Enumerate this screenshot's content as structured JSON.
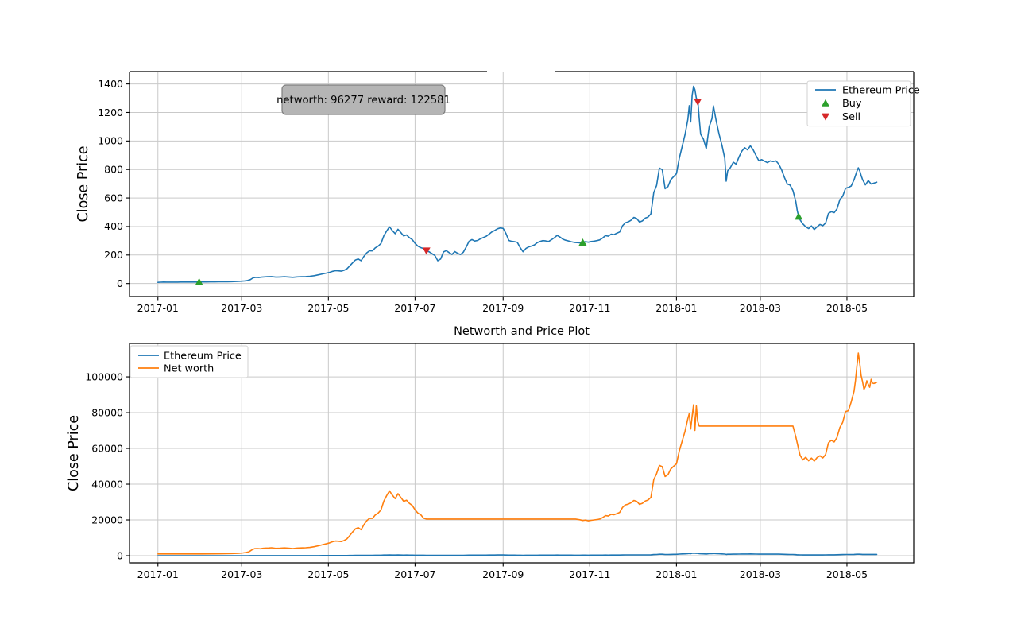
{
  "figure": {
    "background": "#ffffff"
  },
  "annotation": {
    "text": "networth: 96277 reward: 122581",
    "networth": 96277,
    "reward": 122581
  },
  "colors": {
    "price": "#1f77b4",
    "networth": "#ff7f0e",
    "buy": "#2ca02c",
    "sell": "#d62728",
    "grid": "#c9c9c9",
    "spine": "#000000",
    "annotation_bg": "#b5b5b5",
    "annotation_border": "#7f7f7f",
    "legend_border": "#d2d2d2",
    "legend_bg": "#ffffff"
  },
  "eth_price_points": [
    [
      0,
      8
    ],
    [
      2,
      9.6
    ],
    [
      4,
      10.3
    ],
    [
      6,
      10.2
    ],
    [
      8,
      10.1
    ],
    [
      10,
      9.9
    ],
    [
      12,
      10.0
    ],
    [
      14,
      10.1
    ],
    [
      16,
      10.3
    ],
    [
      18,
      10.4
    ],
    [
      20,
      10.7
    ],
    [
      22,
      10.8
    ],
    [
      24,
      10.6
    ],
    [
      26,
      10.5
    ],
    [
      28,
      10.6
    ],
    [
      31,
      10.9
    ],
    [
      34,
      11.2
    ],
    [
      37,
      11.4
    ],
    [
      40,
      11.7
    ],
    [
      43,
      11.9
    ],
    [
      46,
      12.4
    ],
    [
      49,
      12.8
    ],
    [
      52,
      13.2
    ],
    [
      55,
      14.2
    ],
    [
      58,
      15.9
    ],
    [
      61,
      18.5
    ],
    [
      63,
      21
    ],
    [
      65,
      27
    ],
    [
      67,
      40
    ],
    [
      69,
      44
    ],
    [
      71,
      42
    ],
    [
      73,
      45
    ],
    [
      75,
      47
    ],
    [
      77,
      48
    ],
    [
      80,
      49
    ],
    [
      83,
      45
    ],
    [
      86,
      46
    ],
    [
      89,
      48
    ],
    [
      92,
      46
    ],
    [
      95,
      44
    ],
    [
      98,
      47
    ],
    [
      101,
      48
    ],
    [
      104,
      49
    ],
    [
      107,
      51
    ],
    [
      110,
      55
    ],
    [
      113,
      61
    ],
    [
      116,
      68
    ],
    [
      119,
      74
    ],
    [
      121,
      79
    ],
    [
      123,
      86
    ],
    [
      125,
      90
    ],
    [
      127,
      89
    ],
    [
      129,
      87
    ],
    [
      131,
      93
    ],
    [
      133,
      103
    ],
    [
      135,
      123
    ],
    [
      137,
      145
    ],
    [
      139,
      165
    ],
    [
      141,
      172
    ],
    [
      143,
      160
    ],
    [
      145,
      190
    ],
    [
      147,
      215
    ],
    [
      149,
      230
    ],
    [
      151,
      229
    ],
    [
      153,
      250
    ],
    [
      155,
      262
    ],
    [
      157,
      281
    ],
    [
      159,
      335
    ],
    [
      161,
      368
    ],
    [
      163,
      398
    ],
    [
      165,
      372
    ],
    [
      167,
      350
    ],
    [
      169,
      381
    ],
    [
      171,
      358
    ],
    [
      173,
      334
    ],
    [
      175,
      341
    ],
    [
      177,
      322
    ],
    [
      179,
      309
    ],
    [
      181,
      282
    ],
    [
      183,
      262
    ],
    [
      185,
      252
    ],
    [
      187,
      246
    ],
    [
      189,
      232
    ],
    [
      191,
      222
    ],
    [
      193,
      209
    ],
    [
      195,
      196
    ],
    [
      197,
      160
    ],
    [
      199,
      172
    ],
    [
      201,
      222
    ],
    [
      203,
      231
    ],
    [
      205,
      217
    ],
    [
      207,
      204
    ],
    [
      209,
      224
    ],
    [
      211,
      212
    ],
    [
      213,
      204
    ],
    [
      215,
      220
    ],
    [
      217,
      256
    ],
    [
      219,
      296
    ],
    [
      221,
      308
    ],
    [
      223,
      298
    ],
    [
      225,
      302
    ],
    [
      227,
      314
    ],
    [
      229,
      322
    ],
    [
      231,
      331
    ],
    [
      233,
      346
    ],
    [
      235,
      362
    ],
    [
      237,
      372
    ],
    [
      239,
      384
    ],
    [
      241,
      390
    ],
    [
      243,
      387
    ],
    [
      245,
      351
    ],
    [
      247,
      302
    ],
    [
      249,
      296
    ],
    [
      251,
      294
    ],
    [
      253,
      289
    ],
    [
      255,
      252
    ],
    [
      257,
      223
    ],
    [
      259,
      246
    ],
    [
      261,
      257
    ],
    [
      263,
      263
    ],
    [
      265,
      271
    ],
    [
      267,
      287
    ],
    [
      269,
      295
    ],
    [
      271,
      301
    ],
    [
      273,
      299
    ],
    [
      275,
      295
    ],
    [
      277,
      307
    ],
    [
      279,
      321
    ],
    [
      281,
      338
    ],
    [
      283,
      326
    ],
    [
      285,
      311
    ],
    [
      287,
      304
    ],
    [
      289,
      299
    ],
    [
      291,
      293
    ],
    [
      293,
      289
    ],
    [
      295,
      287
    ],
    [
      297,
      286
    ],
    [
      299,
      291
    ],
    [
      301,
      293
    ],
    [
      303,
      290
    ],
    [
      305,
      295
    ],
    [
      307,
      297
    ],
    [
      309,
      301
    ],
    [
      311,
      306
    ],
    [
      313,
      319
    ],
    [
      315,
      336
    ],
    [
      317,
      332
    ],
    [
      319,
      346
    ],
    [
      321,
      343
    ],
    [
      323,
      353
    ],
    [
      325,
      362
    ],
    [
      327,
      405
    ],
    [
      329,
      426
    ],
    [
      331,
      432
    ],
    [
      333,
      444
    ],
    [
      335,
      464
    ],
    [
      337,
      456
    ],
    [
      339,
      431
    ],
    [
      341,
      439
    ],
    [
      343,
      459
    ],
    [
      345,
      466
    ],
    [
      347,
      489
    ],
    [
      349,
      638
    ],
    [
      351,
      688
    ],
    [
      353,
      810
    ],
    [
      355,
      799
    ],
    [
      357,
      665
    ],
    [
      359,
      680
    ],
    [
      361,
      728
    ],
    [
      363,
      750
    ],
    [
      365,
      771
    ],
    [
      367,
      880
    ],
    [
      369,
      960
    ],
    [
      371,
      1043
    ],
    [
      373,
      1150
    ],
    [
      374,
      1248
    ],
    [
      375,
      1133
    ],
    [
      376,
      1318
    ],
    [
      377,
      1384
    ],
    [
      378,
      1360
    ],
    [
      379,
      1300
    ],
    [
      380,
      1286
    ],
    [
      381,
      1160
    ],
    [
      382,
      1048
    ],
    [
      384,
      1012
    ],
    [
      386,
      946
    ],
    [
      388,
      1098
    ],
    [
      390,
      1158
    ],
    [
      391,
      1246
    ],
    [
      393,
      1138
    ],
    [
      395,
      1048
    ],
    [
      397,
      972
    ],
    [
      399,
      878
    ],
    [
      400,
      718
    ],
    [
      401,
      790
    ],
    [
      403,
      814
    ],
    [
      405,
      851
    ],
    [
      407,
      838
    ],
    [
      409,
      888
    ],
    [
      411,
      928
    ],
    [
      413,
      953
    ],
    [
      415,
      938
    ],
    [
      417,
      966
    ],
    [
      419,
      937
    ],
    [
      421,
      898
    ],
    [
      423,
      861
    ],
    [
      425,
      869
    ],
    [
      427,
      858
    ],
    [
      429,
      848
    ],
    [
      431,
      860
    ],
    [
      433,
      856
    ],
    [
      435,
      860
    ],
    [
      437,
      838
    ],
    [
      439,
      798
    ],
    [
      441,
      744
    ],
    [
      443,
      698
    ],
    [
      445,
      690
    ],
    [
      447,
      652
    ],
    [
      449,
      575
    ],
    [
      450,
      512
    ],
    [
      451,
      470
    ],
    [
      452,
      446
    ],
    [
      453,
      432
    ],
    [
      454,
      418
    ],
    [
      456,
      398
    ],
    [
      458,
      386
    ],
    [
      460,
      404
    ],
    [
      462,
      379
    ],
    [
      464,
      398
    ],
    [
      466,
      414
    ],
    [
      468,
      406
    ],
    [
      470,
      424
    ],
    [
      472,
      492
    ],
    [
      474,
      504
    ],
    [
      476,
      497
    ],
    [
      478,
      523
    ],
    [
      480,
      588
    ],
    [
      482,
      612
    ],
    [
      484,
      668
    ],
    [
      486,
      674
    ],
    [
      488,
      684
    ],
    [
      490,
      728
    ],
    [
      492,
      788
    ],
    [
      493,
      812
    ],
    [
      494,
      790
    ],
    [
      495,
      758
    ],
    [
      496,
      729
    ],
    [
      498,
      692
    ],
    [
      500,
      722
    ],
    [
      502,
      698
    ],
    [
      504,
      704
    ],
    [
      506,
      711
    ]
  ],
  "networth_points": [
    [
      0,
      1000
    ],
    [
      8,
      1000
    ],
    [
      16,
      1000
    ],
    [
      24,
      1000
    ],
    [
      31,
      1000
    ],
    [
      38,
      1040
    ],
    [
      45,
      1090
    ],
    [
      52,
      1200
    ],
    [
      57,
      1350
    ],
    [
      60,
      1560
    ],
    [
      62,
      1780
    ],
    [
      64,
      2150
    ],
    [
      66,
      3180
    ],
    [
      68,
      3900
    ],
    [
      70,
      3980
    ],
    [
      72,
      3890
    ],
    [
      74,
      4150
    ],
    [
      76,
      4280
    ],
    [
      78,
      4330
    ],
    [
      80,
      4430
    ],
    [
      83,
      4100
    ],
    [
      86,
      4190
    ],
    [
      89,
      4370
    ],
    [
      92,
      4190
    ],
    [
      95,
      4010
    ],
    [
      98,
      4280
    ],
    [
      101,
      4370
    ],
    [
      104,
      4460
    ],
    [
      107,
      4640
    ],
    [
      110,
      5010
    ],
    [
      113,
      5550
    ],
    [
      116,
      6190
    ],
    [
      119,
      6740
    ],
    [
      121,
      7190
    ],
    [
      123,
      7830
    ],
    [
      125,
      8190
    ],
    [
      127,
      8100
    ],
    [
      129,
      7920
    ],
    [
      131,
      8470
    ],
    [
      133,
      9380
    ],
    [
      135,
      11200
    ],
    [
      137,
      13200
    ],
    [
      139,
      15000
    ],
    [
      141,
      15660
    ],
    [
      143,
      14560
    ],
    [
      145,
      17300
    ],
    [
      147,
      19570
    ],
    [
      149,
      20940
    ],
    [
      151,
      20850
    ],
    [
      153,
      22760
    ],
    [
      155,
      23850
    ],
    [
      157,
      25580
    ],
    [
      159,
      30500
    ],
    [
      161,
      33500
    ],
    [
      163,
      36230
    ],
    [
      165,
      33860
    ],
    [
      167,
      31860
    ],
    [
      169,
      34680
    ],
    [
      171,
      32590
    ],
    [
      173,
      30400
    ],
    [
      175,
      31040
    ],
    [
      177,
      29310
    ],
    [
      179,
      28130
    ],
    [
      181,
      25670
    ],
    [
      183,
      23850
    ],
    [
      185,
      22940
    ],
    [
      187,
      21000
    ],
    [
      189,
      20500
    ],
    [
      200,
      20500
    ],
    [
      220,
      20500
    ],
    [
      240,
      20500
    ],
    [
      260,
      20500
    ],
    [
      280,
      20500
    ],
    [
      294,
      20500
    ],
    [
      297,
      20100
    ],
    [
      299,
      19700
    ],
    [
      301,
      19900
    ],
    [
      303,
      19500
    ],
    [
      305,
      19800
    ],
    [
      307,
      20000
    ],
    [
      309,
      20200
    ],
    [
      311,
      20500
    ],
    [
      313,
      21300
    ],
    [
      315,
      22400
    ],
    [
      317,
      22200
    ],
    [
      319,
      23100
    ],
    [
      321,
      22900
    ],
    [
      323,
      23500
    ],
    [
      325,
      24200
    ],
    [
      327,
      27000
    ],
    [
      329,
      28400
    ],
    [
      331,
      28800
    ],
    [
      333,
      29600
    ],
    [
      335,
      30900
    ],
    [
      337,
      30400
    ],
    [
      339,
      28700
    ],
    [
      341,
      29300
    ],
    [
      343,
      30600
    ],
    [
      345,
      31100
    ],
    [
      347,
      32600
    ],
    [
      349,
      42500
    ],
    [
      351,
      45900
    ],
    [
      353,
      50500
    ],
    [
      355,
      49800
    ],
    [
      357,
      44300
    ],
    [
      359,
      45300
    ],
    [
      361,
      48500
    ],
    [
      363,
      50000
    ],
    [
      365,
      51400
    ],
    [
      367,
      58700
    ],
    [
      369,
      64000
    ],
    [
      371,
      69500
    ],
    [
      373,
      76600
    ],
    [
      374,
      79500
    ],
    [
      375,
      70800
    ],
    [
      376,
      78000
    ],
    [
      377,
      84400
    ],
    [
      378,
      70000
    ],
    [
      379,
      83800
    ],
    [
      380,
      75000
    ],
    [
      381,
      72500
    ],
    [
      392,
      72500
    ],
    [
      408,
      72500
    ],
    [
      424,
      72500
    ],
    [
      440,
      72500
    ],
    [
      447,
      72500
    ],
    [
      449,
      66500
    ],
    [
      451,
      59500
    ],
    [
      452,
      56100
    ],
    [
      454,
      53600
    ],
    [
      456,
      55100
    ],
    [
      458,
      53100
    ],
    [
      460,
      54600
    ],
    [
      462,
      52900
    ],
    [
      464,
      54900
    ],
    [
      466,
      55900
    ],
    [
      468,
      54700
    ],
    [
      470,
      56600
    ],
    [
      472,
      63100
    ],
    [
      474,
      64600
    ],
    [
      476,
      63600
    ],
    [
      478,
      66100
    ],
    [
      480,
      71600
    ],
    [
      482,
      74600
    ],
    [
      484,
      80600
    ],
    [
      486,
      81100
    ],
    [
      488,
      86000
    ],
    [
      490,
      92000
    ],
    [
      491,
      98000
    ],
    [
      492,
      106000
    ],
    [
      493,
      113300
    ],
    [
      494,
      107500
    ],
    [
      495,
      100800
    ],
    [
      496,
      97300
    ],
    [
      497,
      93000
    ],
    [
      498,
      94500
    ],
    [
      499,
      97800
    ],
    [
      500,
      95800
    ],
    [
      501,
      94200
    ],
    [
      502,
      98600
    ],
    [
      503,
      96500
    ],
    [
      504,
      96277
    ],
    [
      506,
      97000
    ]
  ],
  "chart_data": [
    {
      "type": "line",
      "title": "",
      "xlabel": "",
      "ylabel": "Close Price",
      "x_tick_labels": [
        "2017-01",
        "2017-03",
        "2017-05",
        "2017-07",
        "2017-09",
        "2017-11",
        "2018-01",
        "2018-03",
        "2018-05"
      ],
      "x_tick_days": [
        0,
        59,
        120,
        181,
        243,
        304,
        365,
        424,
        485
      ],
      "y_ticks": [
        0,
        200,
        400,
        600,
        800,
        1000,
        1200,
        1400
      ],
      "xlim": [
        -20,
        532
      ],
      "ylim": [
        -91,
        1487
      ],
      "grid": true,
      "legend": {
        "position": "upper right",
        "entries": [
          {
            "label": "Ethereum Price",
            "marker": "line",
            "color_key": "price"
          },
          {
            "label": "Buy",
            "marker": "triangle-up",
            "color_key": "buy"
          },
          {
            "label": "Sell",
            "marker": "triangle-down",
            "color_key": "sell"
          }
        ]
      },
      "series": [
        {
          "name": "Ethereum Price",
          "color_key": "price",
          "points_ref": "eth_price_points"
        }
      ],
      "buy_markers": [
        [
          29,
          11
        ],
        [
          299,
          288
        ],
        [
          451,
          470
        ]
      ],
      "sell_markers": [
        [
          189,
          230
        ],
        [
          380,
          1275
        ]
      ],
      "annotation_text": "networth: 96277 reward: 122581"
    },
    {
      "type": "line",
      "title": "Networth and Price Plot",
      "xlabel": "",
      "ylabel": "Close Price",
      "x_tick_labels": [
        "2017-01",
        "2017-03",
        "2017-05",
        "2017-07",
        "2017-09",
        "2017-11",
        "2018-01",
        "2018-03",
        "2018-05"
      ],
      "x_tick_days": [
        0,
        59,
        120,
        181,
        243,
        304,
        365,
        424,
        485
      ],
      "y_ticks": [
        0,
        20000,
        40000,
        60000,
        80000,
        100000
      ],
      "xlim": [
        -20,
        532
      ],
      "ylim": [
        -4000,
        118700
      ],
      "grid": true,
      "legend": {
        "position": "upper left",
        "entries": [
          {
            "label": "Ethereum Price",
            "marker": "line",
            "color_key": "price"
          },
          {
            "label": "Net worth",
            "marker": "line",
            "color_key": "networth"
          }
        ]
      },
      "series": [
        {
          "name": "Ethereum Price",
          "color_key": "price",
          "points_ref": "eth_price_points"
        },
        {
          "name": "Net worth",
          "color_key": "networth",
          "points_ref": "networth_points"
        }
      ]
    }
  ]
}
